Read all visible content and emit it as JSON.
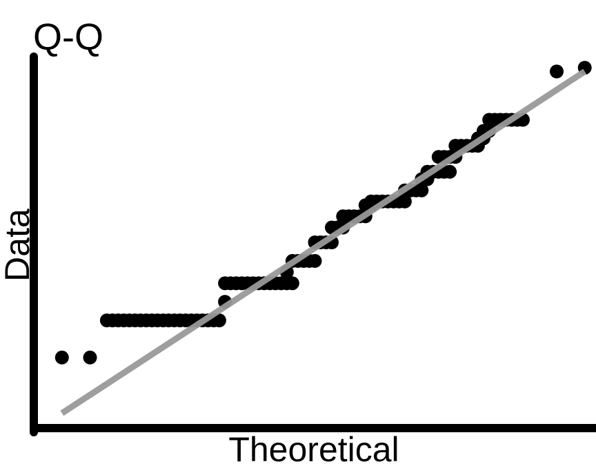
{
  "chart_data": {
    "type": "scatter",
    "title": "Q-Q",
    "xlabel": "Theoretical",
    "ylabel": "Data",
    "grid": false,
    "legend": "none",
    "colors": {
      "points": "#000000",
      "reference_line": "#999999",
      "axes": "#000000"
    },
    "xlim": [
      0,
      1
    ],
    "ylim": [
      0,
      1
    ],
    "reference_line": {
      "x": [
        0.05,
        0.98
      ],
      "y": [
        0.04,
        0.96
      ]
    },
    "series": [
      {
        "values": [
          [
            0.05,
            0.19
          ],
          [
            0.1,
            0.19
          ],
          [
            0.13,
            0.29
          ],
          [
            0.14,
            0.29
          ],
          [
            0.15,
            0.29
          ],
          [
            0.16,
            0.29
          ],
          [
            0.17,
            0.29
          ],
          [
            0.18,
            0.29
          ],
          [
            0.19,
            0.29
          ],
          [
            0.2,
            0.29
          ],
          [
            0.21,
            0.29
          ],
          [
            0.22,
            0.29
          ],
          [
            0.23,
            0.29
          ],
          [
            0.24,
            0.29
          ],
          [
            0.25,
            0.29
          ],
          [
            0.26,
            0.29
          ],
          [
            0.27,
            0.29
          ],
          [
            0.28,
            0.29
          ],
          [
            0.29,
            0.29
          ],
          [
            0.3,
            0.29
          ],
          [
            0.31,
            0.29
          ],
          [
            0.32,
            0.29
          ],
          [
            0.33,
            0.29
          ],
          [
            0.34,
            0.34
          ],
          [
            0.34,
            0.39
          ],
          [
            0.35,
            0.39
          ],
          [
            0.36,
            0.39
          ],
          [
            0.37,
            0.39
          ],
          [
            0.38,
            0.39
          ],
          [
            0.39,
            0.39
          ],
          [
            0.4,
            0.39
          ],
          [
            0.41,
            0.39
          ],
          [
            0.42,
            0.39
          ],
          [
            0.43,
            0.39
          ],
          [
            0.44,
            0.39
          ],
          [
            0.45,
            0.39
          ],
          [
            0.46,
            0.39
          ],
          [
            0.45,
            0.42
          ],
          [
            0.46,
            0.45
          ],
          [
            0.47,
            0.45
          ],
          [
            0.48,
            0.45
          ],
          [
            0.49,
            0.45
          ],
          [
            0.5,
            0.45
          ],
          [
            0.5,
            0.5
          ],
          [
            0.51,
            0.5
          ],
          [
            0.52,
            0.5
          ],
          [
            0.53,
            0.5
          ],
          [
            0.53,
            0.54
          ],
          [
            0.54,
            0.54
          ],
          [
            0.55,
            0.54
          ],
          [
            0.55,
            0.57
          ],
          [
            0.56,
            0.57
          ],
          [
            0.57,
            0.57
          ],
          [
            0.58,
            0.57
          ],
          [
            0.59,
            0.57
          ],
          [
            0.59,
            0.6
          ],
          [
            0.6,
            0.6
          ],
          [
            0.6,
            0.61
          ],
          [
            0.61,
            0.61
          ],
          [
            0.62,
            0.61
          ],
          [
            0.63,
            0.61
          ],
          [
            0.64,
            0.61
          ],
          [
            0.65,
            0.61
          ],
          [
            0.66,
            0.61
          ],
          [
            0.66,
            0.64
          ],
          [
            0.67,
            0.64
          ],
          [
            0.68,
            0.64
          ],
          [
            0.69,
            0.64
          ],
          [
            0.69,
            0.67
          ],
          [
            0.7,
            0.67
          ],
          [
            0.7,
            0.69
          ],
          [
            0.71,
            0.69
          ],
          [
            0.72,
            0.69
          ],
          [
            0.73,
            0.69
          ],
          [
            0.74,
            0.69
          ],
          [
            0.72,
            0.73
          ],
          [
            0.73,
            0.73
          ],
          [
            0.74,
            0.73
          ],
          [
            0.75,
            0.73
          ],
          [
            0.75,
            0.76
          ],
          [
            0.76,
            0.76
          ],
          [
            0.77,
            0.76
          ],
          [
            0.78,
            0.76
          ],
          [
            0.79,
            0.76
          ],
          [
            0.79,
            0.78
          ],
          [
            0.8,
            0.78
          ],
          [
            0.8,
            0.8
          ],
          [
            0.81,
            0.8
          ],
          [
            0.81,
            0.83
          ],
          [
            0.82,
            0.83
          ],
          [
            0.83,
            0.83
          ],
          [
            0.84,
            0.83
          ],
          [
            0.85,
            0.83
          ],
          [
            0.86,
            0.83
          ],
          [
            0.87,
            0.83
          ],
          [
            0.93,
            0.96
          ],
          [
            0.98,
            0.97
          ]
        ]
      }
    ]
  }
}
